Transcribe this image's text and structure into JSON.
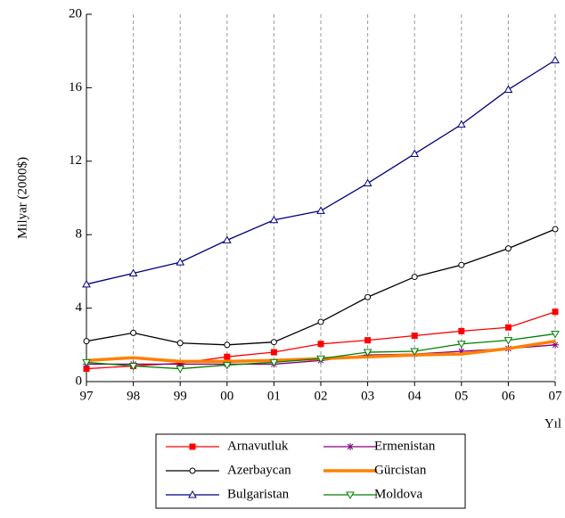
{
  "chart_data": {
    "type": "line",
    "y_label": "Milyar (2000$)",
    "x_label": "Yıl",
    "categories": [
      "97",
      "98",
      "99",
      "00",
      "01",
      "02",
      "03",
      "04",
      "05",
      "06",
      "07"
    ],
    "ylim": [
      0,
      20
    ],
    "yticks": [
      0,
      4,
      8,
      12,
      16,
      20
    ],
    "grid": true,
    "legend": "bottom",
    "series": [
      {
        "name": "Arnavutluk",
        "color": "#ff0000",
        "marker": "square",
        "values": [
          0.7,
          0.85,
          1.0,
          1.35,
          1.6,
          2.05,
          2.25,
          2.5,
          2.75,
          2.95,
          3.8
        ]
      },
      {
        "name": "Ermenistan",
        "color": "#800080",
        "marker": "asterisk",
        "values": [
          0.95,
          0.95,
          0.95,
          0.95,
          0.95,
          1.15,
          1.45,
          1.5,
          1.65,
          1.8,
          2.0
        ]
      },
      {
        "name": "Azerbaycan",
        "color": "#000000",
        "marker": "circle",
        "values": [
          2.2,
          2.65,
          2.1,
          2.0,
          2.15,
          3.25,
          4.6,
          5.7,
          6.35,
          7.25,
          8.3
        ]
      },
      {
        "name": "Gürcistan",
        "color": "#ff8000",
        "marker": "none",
        "values": [
          1.15,
          1.3,
          1.1,
          1.1,
          1.15,
          1.25,
          1.35,
          1.45,
          1.5,
          1.8,
          2.2
        ]
      },
      {
        "name": "Bulgaristan",
        "color": "#000080",
        "marker": "triangle",
        "values": [
          5.3,
          5.9,
          6.5,
          7.7,
          8.8,
          9.3,
          10.8,
          12.4,
          14.0,
          15.9,
          17.5
        ]
      },
      {
        "name": "Moldova",
        "color": "#008000",
        "marker": "triangle-down",
        "values": [
          1.05,
          0.85,
          0.7,
          0.9,
          1.05,
          1.25,
          1.6,
          1.65,
          2.05,
          2.25,
          2.6
        ]
      }
    ]
  }
}
